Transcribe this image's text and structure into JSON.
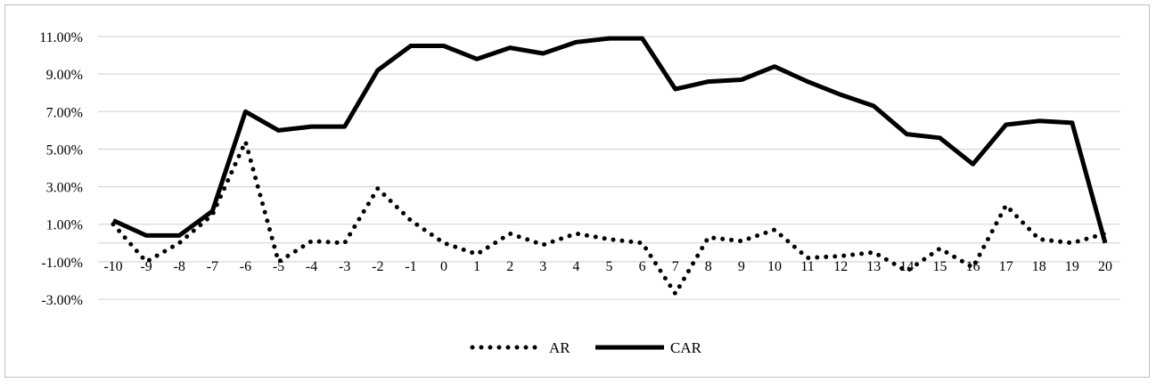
{
  "chart_data": {
    "type": "line",
    "categories": [
      "-10",
      "-9",
      "-8",
      "-7",
      "-6",
      "-5",
      "-4",
      "-3",
      "-2",
      "-1",
      "0",
      "1",
      "2",
      "3",
      "4",
      "5",
      "6",
      "7",
      "8",
      "9",
      "10",
      "11",
      "12",
      "13",
      "14",
      "15",
      "16",
      "17",
      "18",
      "19",
      "20"
    ],
    "series": [
      {
        "name": "AR",
        "style": "dotted",
        "values": [
          1.0,
          -1.0,
          0.0,
          1.5,
          5.4,
          -1.0,
          0.1,
          0.0,
          2.9,
          1.2,
          0.0,
          -0.6,
          0.5,
          -0.1,
          0.5,
          0.2,
          0.0,
          -2.7,
          0.3,
          0.1,
          0.7,
          -0.8,
          -0.7,
          -0.5,
          -1.5,
          -0.3,
          -1.3,
          2.0,
          0.2,
          0.0,
          0.5
        ]
      },
      {
        "name": "CAR",
        "style": "solid",
        "values": [
          1.2,
          0.4,
          0.4,
          1.7,
          7.0,
          6.0,
          6.2,
          6.2,
          9.2,
          10.5,
          10.5,
          9.8,
          10.4,
          10.1,
          10.7,
          10.9,
          10.9,
          8.2,
          8.6,
          8.7,
          9.4,
          8.6,
          7.9,
          7.3,
          5.8,
          5.6,
          4.2,
          6.3,
          6.5,
          6.4,
          0.0
        ]
      }
    ],
    "y_ticks": [
      "11.00%",
      "9.00%",
      "7.00%",
      "5.00%",
      "3.00%",
      "1.00%",
      "-1.00%",
      "-3.00%"
    ],
    "ylim": [
      -3,
      11
    ],
    "grid": true,
    "legend_position": "bottom",
    "colors": {
      "line": "#000000",
      "grid": "#d9d9d9"
    }
  }
}
